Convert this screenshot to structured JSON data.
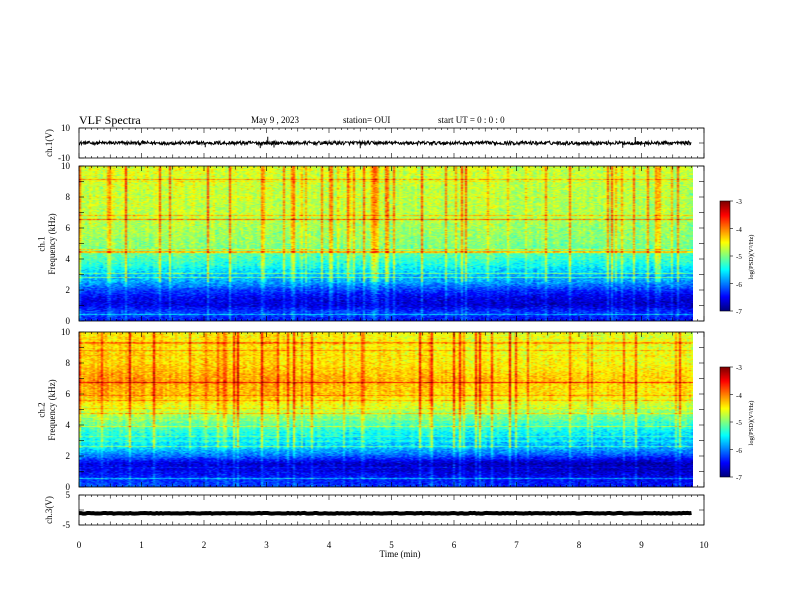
{
  "header": {
    "title": "VLF Spectra",
    "date": "May 9  , 2023",
    "station": "station= OUI",
    "start_ut": "start  UT =   0 : 0  : 0"
  },
  "chart_data": [
    {
      "type": "line",
      "panel": "ch1-waveform",
      "ylabel": "ch.1(V)",
      "ylim": [
        -10,
        10
      ],
      "yticks": [
        "10",
        "-10"
      ],
      "xlim": [
        0,
        10
      ],
      "baseline": 0,
      "noise_amplitude": 1.2,
      "spikes": [
        {
          "x": 1.02,
          "y": 1.9
        },
        {
          "x": 2.02,
          "y": -2.8
        },
        {
          "x": 2.9,
          "y": -3.4
        },
        {
          "x": 3.02,
          "y": 4.2
        },
        {
          "x": 3.12,
          "y": -3.0
        },
        {
          "x": 4.5,
          "y": -3.5
        },
        {
          "x": 8.7,
          "y": -3.2
        },
        {
          "x": 8.9,
          "y": 4.0
        },
        {
          "x": 9.05,
          "y": -2.5
        }
      ]
    },
    {
      "type": "heatmap",
      "panel": "ch1-spectrogram",
      "ylabel": "ch.1\nFrequency  (kHz)",
      "xlim": [
        0,
        10
      ],
      "ylim": [
        0,
        10
      ],
      "yticks": [
        "0",
        "2",
        "4",
        "6",
        "8",
        "10"
      ],
      "data_extent_min": 9.8,
      "colorbar": {
        "label": "log(PSD)(V²/Hz)",
        "range": [
          -7,
          -3
        ],
        "ticks": [
          "-3",
          "-4",
          "-5",
          "-6",
          "-7"
        ]
      },
      "profile_khz_to_log_psd": [
        [
          0,
          -6.4
        ],
        [
          0.5,
          -6.2
        ],
        [
          1.0,
          -6.6
        ],
        [
          1.5,
          -6.5
        ],
        [
          2.0,
          -6.2
        ],
        [
          2.5,
          -5.8
        ],
        [
          3.0,
          -5.7
        ],
        [
          3.5,
          -5.4
        ],
        [
          4.0,
          -5.2
        ],
        [
          5.0,
          -4.9
        ],
        [
          6.0,
          -4.8
        ],
        [
          7.0,
          -4.7
        ],
        [
          8.0,
          -4.7
        ],
        [
          9.0,
          -4.65
        ],
        [
          10.0,
          -4.6
        ]
      ],
      "time_trend": -0.12
    },
    {
      "type": "heatmap",
      "panel": "ch2-spectrogram",
      "ylabel": "ch.2\nFrequency  (kHz)",
      "xlim": [
        0,
        10
      ],
      "ylim": [
        0,
        10
      ],
      "yticks": [
        "0",
        "2",
        "4",
        "6",
        "8",
        "10"
      ],
      "data_extent_min": 9.8,
      "colorbar": {
        "label": "log(PSD)(V²/Hz)",
        "range": [
          -7,
          -3
        ],
        "ticks": [
          "-3",
          "-4",
          "-5",
          "-6",
          "-7"
        ]
      },
      "profile_khz_to_log_psd": [
        [
          0,
          -6.2
        ],
        [
          0.5,
          -6.3
        ],
        [
          1.0,
          -6.5
        ],
        [
          1.5,
          -6.6
        ],
        [
          2.0,
          -6.0
        ],
        [
          2.5,
          -5.6
        ],
        [
          3.0,
          -5.5
        ],
        [
          3.5,
          -5.3
        ],
        [
          4.0,
          -5.1
        ],
        [
          5.0,
          -4.6
        ],
        [
          6.0,
          -4.2
        ],
        [
          7.0,
          -4.1
        ],
        [
          8.0,
          -4.3
        ],
        [
          9.0,
          -4.35
        ],
        [
          10.0,
          -4.4
        ]
      ],
      "time_trend": -0.25
    },
    {
      "type": "line",
      "panel": "ch3-waveform",
      "ylabel": "ch.3(V)",
      "ylim": [
        -5,
        5
      ],
      "yticks": [
        "5",
        "0",
        "-5"
      ],
      "xlim": [
        0,
        10
      ],
      "baseline": -1.1,
      "noise_amplitude": 0.25
    }
  ],
  "xaxis": {
    "label": "Time  (min)",
    "ticks": [
      "0",
      "1",
      "2",
      "3",
      "4",
      "5",
      "6",
      "7",
      "8",
      "9",
      "10"
    ]
  }
}
